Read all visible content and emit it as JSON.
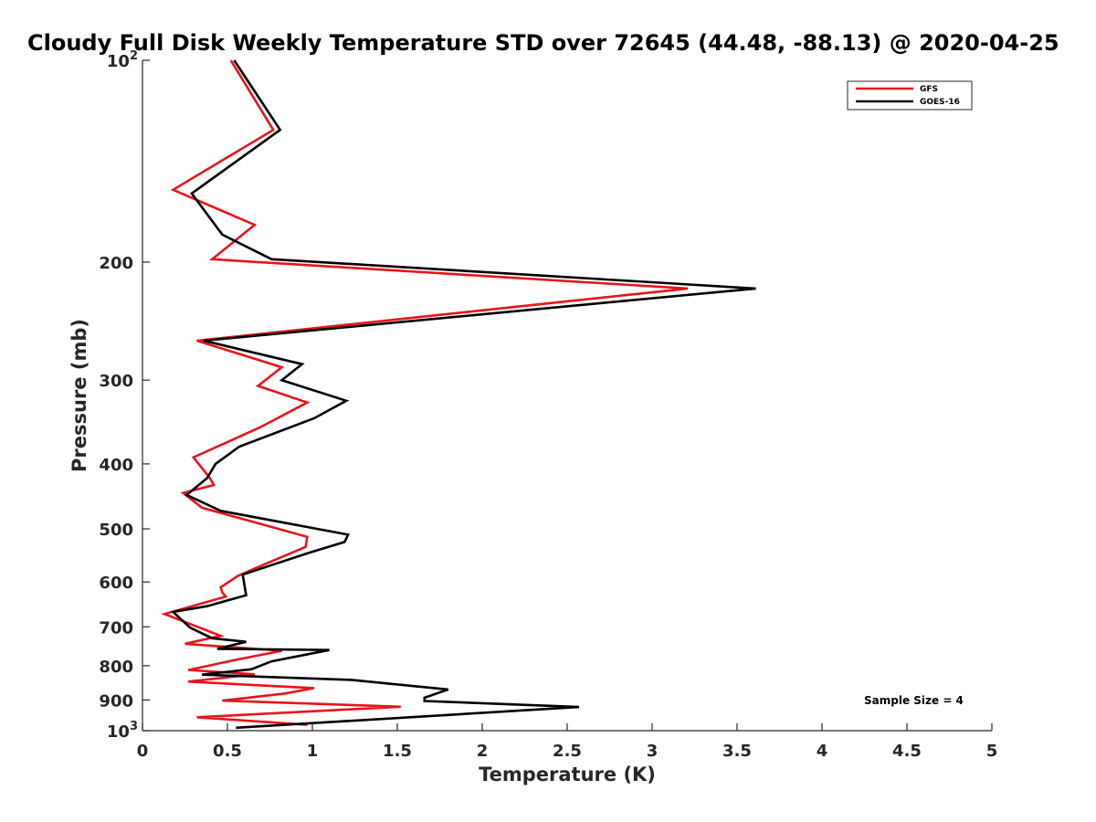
{
  "chart_data": {
    "type": "line",
    "title": "Cloudy Full Disk Weekly Temperature STD over 72645 (44.48, -88.13) @ 2020-04-25",
    "xlabel": "Temperature (K)",
    "ylabel": "Pressure (mb)",
    "xlim": [
      0,
      5
    ],
    "ylim": [
      1000,
      100
    ],
    "yscale": "log",
    "x_ticks": [
      "0",
      "0.5",
      "1",
      "1.5",
      "2",
      "2.5",
      "3",
      "3.5",
      "4",
      "4.5",
      "5"
    ],
    "y_ticks": [
      {
        "value": 100,
        "label": "10",
        "exp": "2"
      },
      {
        "value": 200,
        "label": "200",
        "exp": ""
      },
      {
        "value": 300,
        "label": "300",
        "exp": ""
      },
      {
        "value": 400,
        "label": "400",
        "exp": ""
      },
      {
        "value": 500,
        "label": "500",
        "exp": ""
      },
      {
        "value": 600,
        "label": "600",
        "exp": ""
      },
      {
        "value": 700,
        "label": "700",
        "exp": ""
      },
      {
        "value": 800,
        "label": "800",
        "exp": ""
      },
      {
        "value": 900,
        "label": "900",
        "exp": ""
      },
      {
        "value": 1000,
        "label": "10",
        "exp": "3"
      }
    ],
    "legend_position": "top-right",
    "annotation": "Sample Size = 4",
    "series": [
      {
        "name": "GFS",
        "color": "#e8141b",
        "points": [
          [
            0.52,
            100
          ],
          [
            0.77,
            127
          ],
          [
            0.18,
            156
          ],
          [
            0.66,
            176
          ],
          [
            0.41,
            198
          ],
          [
            3.21,
            219
          ],
          [
            0.32,
            262
          ],
          [
            0.82,
            287
          ],
          [
            0.68,
            306
          ],
          [
            0.97,
            324
          ],
          [
            0.69,
            353
          ],
          [
            0.3,
            391
          ],
          [
            0.4,
            421
          ],
          [
            0.42,
            430
          ],
          [
            0.24,
            442
          ],
          [
            0.35,
            465
          ],
          [
            0.97,
            514
          ],
          [
            0.96,
            532
          ],
          [
            0.73,
            563
          ],
          [
            0.56,
            588
          ],
          [
            0.46,
            611
          ],
          [
            0.47,
            622
          ],
          [
            0.49,
            631
          ],
          [
            0.13,
            670
          ],
          [
            0.46,
            722
          ],
          [
            0.25,
            742
          ],
          [
            0.82,
            760
          ],
          [
            0.52,
            787
          ],
          [
            0.27,
            812
          ],
          [
            0.66,
            824
          ],
          [
            0.27,
            845
          ],
          [
            1.01,
            864
          ],
          [
            0.84,
            880
          ],
          [
            0.47,
            902
          ],
          [
            1.52,
            921
          ],
          [
            0.32,
            955
          ],
          [
            0.97,
            980
          ]
        ]
      },
      {
        "name": "GOES-16",
        "color": "#000000",
        "points": [
          [
            0.54,
            100
          ],
          [
            0.81,
            127
          ],
          [
            0.29,
            158
          ],
          [
            0.47,
            182
          ],
          [
            0.76,
            198
          ],
          [
            3.61,
            219
          ],
          [
            0.36,
            262
          ],
          [
            0.94,
            284
          ],
          [
            0.82,
            300
          ],
          [
            1.2,
            322
          ],
          [
            1.01,
            342
          ],
          [
            0.57,
            377
          ],
          [
            0.43,
            400
          ],
          [
            0.38,
            420
          ],
          [
            0.26,
            445
          ],
          [
            0.46,
            470
          ],
          [
            1.21,
            510
          ],
          [
            1.19,
            523
          ],
          [
            0.98,
            543
          ],
          [
            0.59,
            585
          ],
          [
            0.61,
            628
          ],
          [
            0.38,
            652
          ],
          [
            0.18,
            665
          ],
          [
            0.28,
            702
          ],
          [
            0.41,
            728
          ],
          [
            0.61,
            737
          ],
          [
            0.44,
            755
          ],
          [
            1.1,
            758
          ],
          [
            0.76,
            788
          ],
          [
            0.64,
            810
          ],
          [
            0.35,
            825
          ],
          [
            1.23,
            840
          ],
          [
            1.8,
            868
          ],
          [
            1.66,
            893
          ],
          [
            1.66,
            903
          ],
          [
            2.57,
            922
          ],
          [
            0.55,
            990
          ]
        ]
      }
    ]
  }
}
